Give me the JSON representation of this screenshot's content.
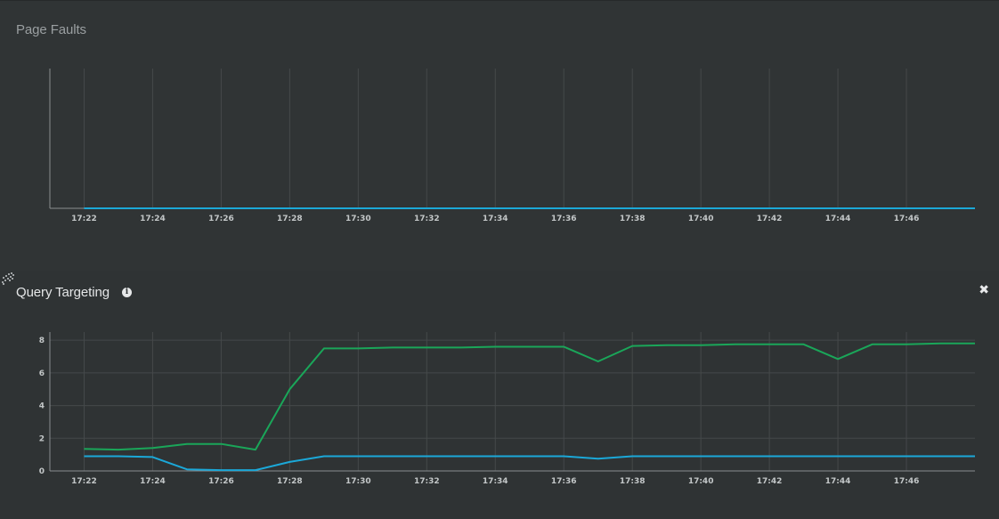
{
  "panels": {
    "page_faults": {
      "title": "Page Faults"
    },
    "query_targeting": {
      "title": "Query Targeting",
      "info_icon": "info-icon",
      "close_icon": "close-icon",
      "drag_icon": "drag-handle-icon"
    }
  },
  "colors": {
    "grid": "#45494a",
    "axis": "#8a8e90",
    "green": "#1aa659",
    "blue": "#1ba8d8"
  },
  "chart_data": [
    {
      "type": "line",
      "title": "Page Faults",
      "x_ticks": [
        "17:22",
        "17:24",
        "17:26",
        "17:28",
        "17:30",
        "17:32",
        "17:34",
        "17:36",
        "17:38",
        "17:40",
        "17:42",
        "17:44",
        "17:46"
      ],
      "xlim": [
        "17:21",
        "17:48"
      ],
      "ylim": [
        0,
        1
      ],
      "y_ticks": [],
      "grid": "vertical",
      "series": [
        {
          "color": "#1ba8d8",
          "x": [
            "17:22",
            "17:48"
          ],
          "values": [
            0,
            0
          ]
        }
      ]
    },
    {
      "type": "line",
      "title": "Query Targeting",
      "x_ticks": [
        "17:22",
        "17:24",
        "17:26",
        "17:28",
        "17:30",
        "17:32",
        "17:34",
        "17:36",
        "17:38",
        "17:40",
        "17:42",
        "17:44",
        "17:46"
      ],
      "xlim": [
        "17:21",
        "17:48"
      ],
      "ylim": [
        0,
        8.5
      ],
      "y_ticks": [
        0,
        2,
        4,
        6,
        8
      ],
      "grid": "both",
      "series": [
        {
          "color": "#1aa659",
          "x": [
            "17:22",
            "17:23",
            "17:24",
            "17:25",
            "17:26",
            "17:27",
            "17:28",
            "17:29",
            "17:30",
            "17:31",
            "17:32",
            "17:33",
            "17:34",
            "17:35",
            "17:36",
            "17:37",
            "17:38",
            "17:39",
            "17:40",
            "17:41",
            "17:42",
            "17:43",
            "17:44",
            "17:45",
            "17:46",
            "17:47",
            "17:48"
          ],
          "values": [
            1.35,
            1.3,
            1.4,
            1.65,
            1.65,
            1.3,
            5.0,
            7.5,
            7.5,
            7.55,
            7.55,
            7.55,
            7.6,
            7.6,
            7.6,
            6.7,
            7.65,
            7.7,
            7.7,
            7.75,
            7.75,
            7.75,
            6.85,
            7.75,
            7.75,
            7.8,
            7.8
          ]
        },
        {
          "color": "#1ba8d8",
          "x": [
            "17:22",
            "17:23",
            "17:24",
            "17:25",
            "17:26",
            "17:27",
            "17:28",
            "17:29",
            "17:30",
            "17:31",
            "17:32",
            "17:33",
            "17:34",
            "17:35",
            "17:36",
            "17:37",
            "17:38",
            "17:39",
            "17:40",
            "17:41",
            "17:42",
            "17:43",
            "17:44",
            "17:45",
            "17:46",
            "17:47",
            "17:48"
          ],
          "values": [
            0.9,
            0.9,
            0.85,
            0.1,
            0.05,
            0.05,
            0.55,
            0.9,
            0.9,
            0.9,
            0.9,
            0.9,
            0.9,
            0.9,
            0.9,
            0.75,
            0.9,
            0.9,
            0.9,
            0.9,
            0.9,
            0.9,
            0.9,
            0.9,
            0.9,
            0.9,
            0.9
          ]
        }
      ]
    }
  ]
}
